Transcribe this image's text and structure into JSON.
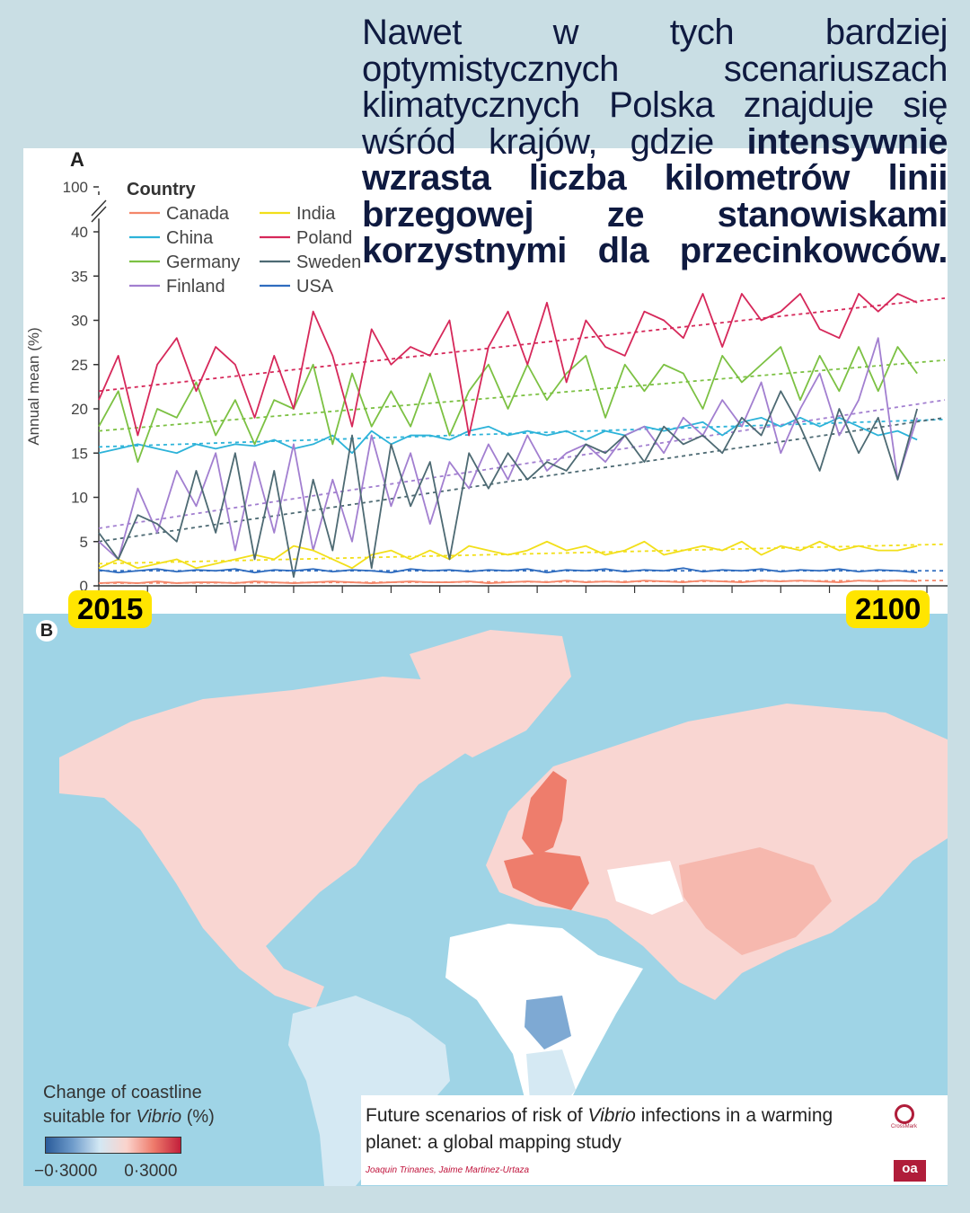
{
  "headline": {
    "normal": "Nawet w tych bardziej optymistycznych scenariuszach klimatycznych Polska znajduje się wśród krajów, gdzie ",
    "bold": "intensywnie wzrasta liczba kilometrów linii brzegowej ze stanowiskami korzystnymi dla przecinkowców."
  },
  "badges": {
    "start": "2015",
    "end": "2100"
  },
  "panel_a_label": "A",
  "panel_b_label": "B",
  "chart_data": {
    "type": "line",
    "title": "",
    "xlabel": "",
    "ylabel": "Annual mean (%)",
    "legend_title": "Country",
    "legend_position": "top-left",
    "xlim": [
      2015,
      2100
    ],
    "ylim": [
      0,
      40
    ],
    "y_break_top": 100,
    "yticks": [
      0,
      5,
      10,
      15,
      20,
      25,
      30,
      35,
      40,
      100
    ],
    "x_step_years": 2,
    "x_start": 2015,
    "series": [
      {
        "name": "Canada",
        "color": "#f4876a",
        "trend": [
          0.3,
          0.6
        ],
        "values": [
          0.3,
          0.4,
          0.3,
          0.5,
          0.3,
          0.4,
          0.4,
          0.3,
          0.5,
          0.4,
          0.3,
          0.4,
          0.5,
          0.4,
          0.3,
          0.4,
          0.5,
          0.4,
          0.4,
          0.5,
          0.3,
          0.4,
          0.5,
          0.4,
          0.6,
          0.4,
          0.5,
          0.4,
          0.6,
          0.5,
          0.4,
          0.6,
          0.5,
          0.4,
          0.6,
          0.5,
          0.6,
          0.5,
          0.4,
          0.6,
          0.5,
          0.6,
          0.5
        ]
      },
      {
        "name": "China",
        "color": "#2db3d9",
        "trend": [
          15.7,
          18.8
        ],
        "values": [
          15,
          15.5,
          16,
          15.5,
          15,
          16,
          15.5,
          16,
          15.8,
          16.5,
          15.5,
          16,
          17,
          15,
          17.5,
          16,
          17,
          17,
          16.5,
          17.5,
          18,
          17,
          17.5,
          17,
          17.5,
          16.5,
          17.5,
          17,
          18,
          17.5,
          18,
          18.5,
          17,
          18.5,
          19,
          18,
          19,
          18,
          19,
          18,
          17,
          17.5,
          16.5
        ]
      },
      {
        "name": "Germany",
        "color": "#7cc143",
        "trend": [
          17.5,
          25.5
        ],
        "values": [
          18,
          22,
          14,
          20,
          19,
          23,
          17,
          21,
          16,
          21,
          20,
          25,
          16,
          24,
          18,
          22,
          18,
          24,
          17,
          22,
          25,
          20,
          25,
          21,
          24,
          26,
          19,
          25,
          22,
          25,
          24,
          20,
          26,
          23,
          25,
          27,
          21,
          26,
          22,
          27,
          22,
          27,
          24
        ]
      },
      {
        "name": "Finland",
        "color": "#a27fd0",
        "trend": [
          6.5,
          21
        ],
        "values": [
          5,
          3,
          11,
          6,
          13,
          9,
          15,
          4,
          14,
          6,
          16,
          4,
          12,
          5,
          17,
          9,
          15,
          7,
          14,
          11,
          16,
          12,
          17,
          13,
          15,
          16,
          14,
          17,
          18,
          15,
          19,
          17,
          21,
          18,
          23,
          15,
          20,
          24,
          17,
          21,
          28,
          12,
          19
        ]
      },
      {
        "name": "India",
        "color": "#f2df1a",
        "trend": [
          2.5,
          4.7
        ],
        "values": [
          2,
          3,
          2,
          2.5,
          3,
          2,
          2.5,
          3,
          3.5,
          3,
          4.5,
          4,
          3,
          2,
          3.5,
          4,
          3,
          4,
          3,
          4.5,
          4,
          3.5,
          4,
          5,
          4,
          4.5,
          3.5,
          4,
          5,
          3.5,
          4,
          4.5,
          4,
          5,
          3.5,
          4.5,
          4,
          5,
          4,
          4.5,
          4,
          4,
          4.5
        ]
      },
      {
        "name": "Poland",
        "color": "#d6285a",
        "trend": [
          22,
          32.5
        ],
        "values": [
          21,
          26,
          17,
          25,
          28,
          22,
          27,
          25,
          19,
          26,
          20,
          31,
          26,
          18,
          29,
          25,
          27,
          26,
          30,
          17,
          27,
          31,
          25,
          32,
          23,
          30,
          27,
          26,
          31,
          30,
          28,
          33,
          27,
          33,
          30,
          31,
          33,
          29,
          28,
          33,
          31,
          33,
          32
        ]
      },
      {
        "name": "Sweden",
        "color": "#4d6a73",
        "trend": [
          5,
          19
        ],
        "values": [
          6,
          3,
          8,
          7,
          5,
          13,
          6,
          15,
          3,
          13,
          1,
          12,
          4,
          17,
          2,
          16,
          9,
          14,
          3,
          15,
          11,
          15,
          12,
          14,
          13,
          16,
          15,
          17,
          14,
          18,
          16,
          17,
          15,
          19,
          17,
          22,
          18,
          13,
          20,
          15,
          19,
          12,
          20
        ]
      },
      {
        "name": "USA",
        "color": "#2f6cbf",
        "trend": [
          1.7,
          1.7
        ],
        "values": [
          1.8,
          1.5,
          1.7,
          1.9,
          1.6,
          1.8,
          1.7,
          1.9,
          1.5,
          1.8,
          1.7,
          1.9,
          1.6,
          1.8,
          1.7,
          1.5,
          1.9,
          1.7,
          1.8,
          1.6,
          1.8,
          1.7,
          1.9,
          1.5,
          1.8,
          1.7,
          1.9,
          1.6,
          1.8,
          1.7,
          2,
          1.6,
          1.8,
          1.7,
          1.9,
          1.6,
          1.8,
          1.7,
          1.9,
          1.6,
          1.8,
          1.7,
          1.5
        ]
      }
    ]
  },
  "map_legend": {
    "title_line1": "Change of coastline",
    "title_line2_prefix": "suitable for ",
    "title_line2_italic": "Vibrio",
    "title_line2_suffix": " (%)",
    "min_label": "−0·3000",
    "max_label": "0·3000"
  },
  "map_colors": {
    "ocean": "#9fd4e6",
    "light_pink": "#f9d6d2",
    "red": "#ee7d6c",
    "light_blue": "#d5e9f3",
    "blue": "#7ea9d3",
    "white": "#ffffff"
  },
  "citation": {
    "title_part1": "Future scenarios of risk of ",
    "title_italic": "Vibrio",
    "title_part2": " infections in a warming planet: a global mapping study",
    "authors": "Joaquin Trinanes, Jaime Martinez-Urtaza",
    "crossmark": "CrossMark",
    "oa": "oa"
  }
}
